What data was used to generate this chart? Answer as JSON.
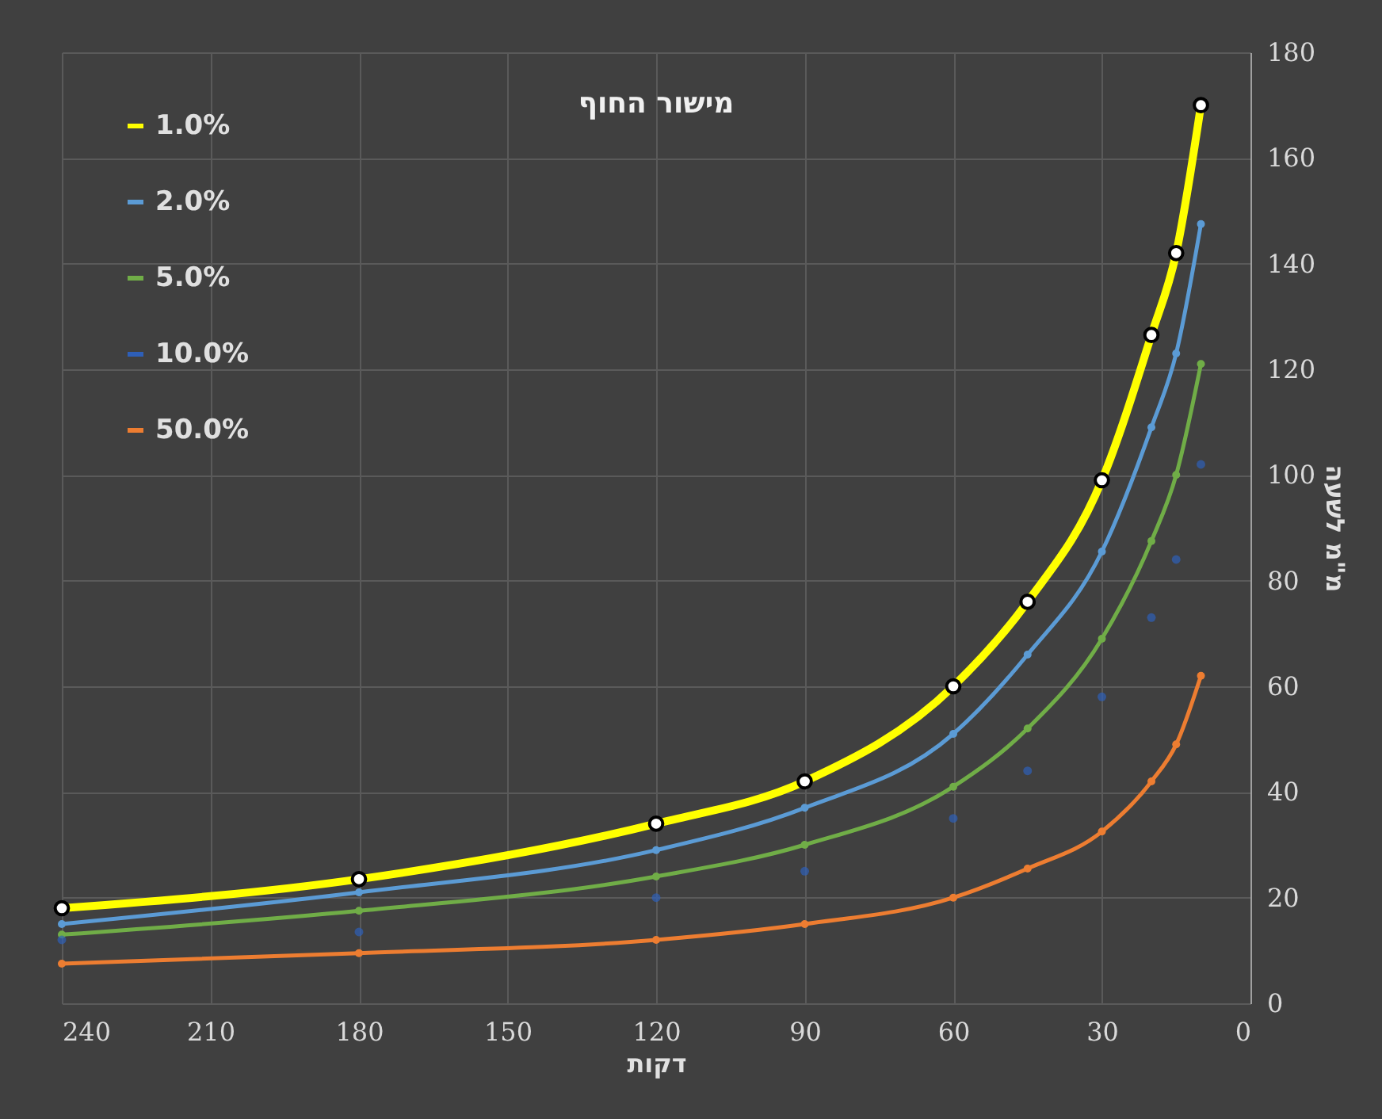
{
  "chart_data": {
    "type": "line",
    "title": "מישור החוף",
    "xlabel": "דקות",
    "ylabel": "מ\"מ לשעה",
    "x": [
      240,
      180,
      120,
      90,
      60,
      45,
      30,
      20,
      15,
      10
    ],
    "series": [
      {
        "name": "1.0%",
        "color": "#ffff00",
        "values": [
          18,
          23.5,
          34,
          42,
          60,
          76,
          99,
          126.5,
          142,
          170
        ]
      },
      {
        "name": "2.0%",
        "color": "#5b9bd5",
        "values": [
          15,
          21,
          29,
          37,
          51,
          66,
          85.5,
          109,
          123,
          147.5
        ]
      },
      {
        "name": "5.0%",
        "color": "#70ad47",
        "values": [
          13,
          17.5,
          24,
          30,
          41,
          52,
          69,
          87.5,
          100,
          121
        ]
      },
      {
        "name": "10.0%",
        "type": "scatter",
        "color": "#2e5fb8",
        "values": [
          12,
          13.5,
          20,
          25,
          35,
          44,
          58,
          73,
          84,
          102
        ]
      },
      {
        "name": "50.0%",
        "color": "#ed7d31",
        "values": [
          7.5,
          9.5,
          12,
          15,
          20,
          25.5,
          32.5,
          42,
          49,
          62
        ]
      }
    ],
    "xlim": [
      240,
      0
    ],
    "xticks": [
      240,
      210,
      180,
      150,
      120,
      90,
      60,
      30,
      0
    ],
    "ylim": [
      0,
      180
    ],
    "yticks": [
      0,
      20,
      40,
      60,
      80,
      100,
      120,
      140,
      160,
      180
    ],
    "grid": true,
    "legend": "top left",
    "marker": "circle"
  }
}
